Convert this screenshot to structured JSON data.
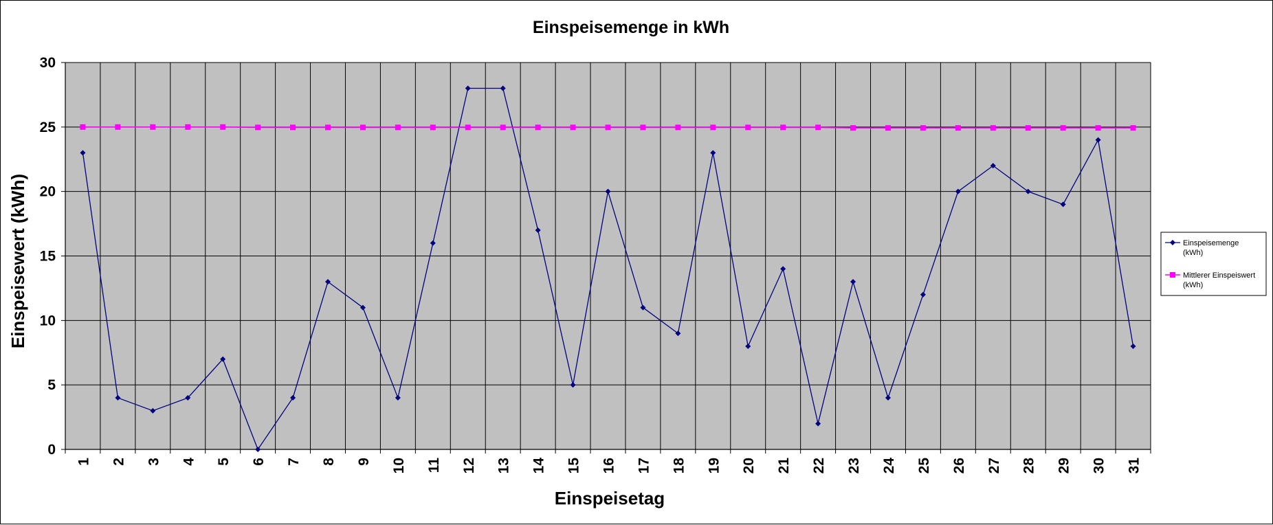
{
  "chart_data": {
    "type": "line",
    "title": "Einspeisemenge in kWh",
    "xlabel": "Einspeisetag",
    "ylabel": "Einspeisewert  (kWh)",
    "ylim": [
      0,
      30
    ],
    "yticks": [
      "0",
      "5",
      "10",
      "15",
      "20",
      "25",
      "30"
    ],
    "categories": [
      "1",
      "2",
      "3",
      "4",
      "5",
      "6",
      "7",
      "8",
      "9",
      "10",
      "11",
      "12",
      "13",
      "14",
      "15",
      "16",
      "17",
      "18",
      "19",
      "20",
      "21",
      "22",
      "23",
      "24",
      "25",
      "26",
      "27",
      "28",
      "29",
      "30",
      "31"
    ],
    "grid": true,
    "plot_background": "#c0c0c0",
    "legend_position": "right",
    "series": [
      {
        "name_lines": [
          "Einspeisemenge",
          "(kWh)"
        ],
        "color": "#000080",
        "marker": "diamond",
        "values": [
          23,
          4,
          3,
          4,
          7,
          0,
          4,
          13,
          11,
          4,
          16,
          28,
          28,
          17,
          5,
          20,
          11,
          9,
          23,
          8,
          14,
          2,
          13,
          4,
          12,
          20,
          22,
          20,
          19,
          24,
          8
        ]
      },
      {
        "name_lines": [
          "Mittlerer Einspeiswert",
          "(kWh)"
        ],
        "color": "#ff00ff",
        "marker": "square",
        "values": [
          25,
          25,
          25,
          25,
          25,
          24.97,
          24.97,
          24.97,
          24.97,
          24.97,
          24.97,
          24.97,
          24.97,
          24.97,
          24.97,
          24.97,
          24.97,
          24.97,
          24.97,
          24.97,
          24.97,
          24.97,
          24.93,
          24.93,
          24.93,
          24.93,
          24.93,
          24.93,
          24.93,
          24.93,
          24.93
        ]
      }
    ]
  }
}
